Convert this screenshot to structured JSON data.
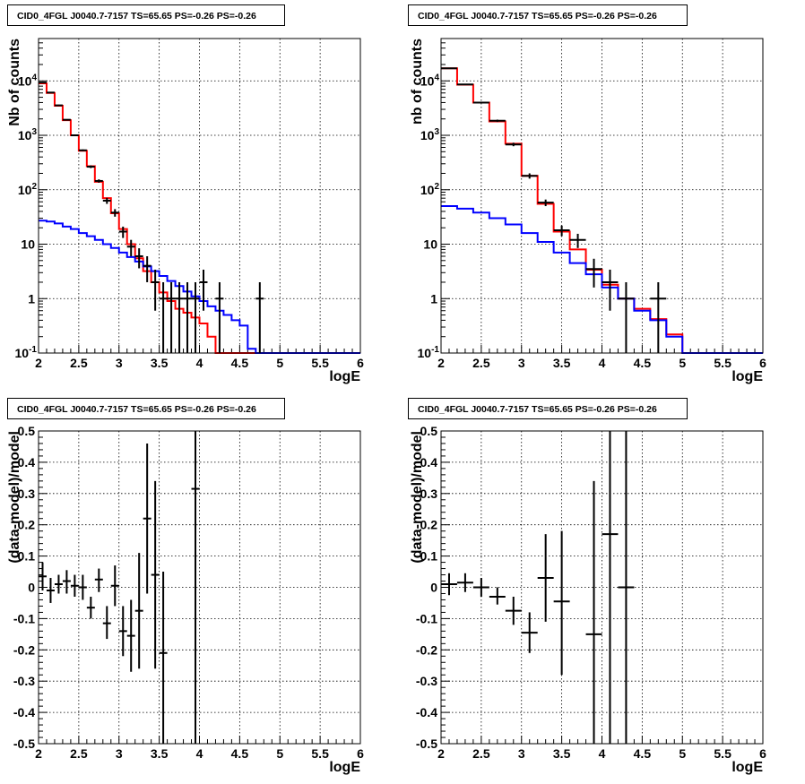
{
  "panel_titles": [
    "CID0_4FGL J0040.7-7157 TS=65.65 PS=-0.26 PS=-0.26",
    "CID0_4FGL J0040.7-7157 TS=65.65 PS=-0.26 PS=-0.26",
    "CID0_4FGL J0040.7-7157 TS=65.65 PS=-0.26 PS=-0.26",
    "CID0_4FGL J0040.7-7157 TS=65.65 PS=-0.26 PS=-0.26"
  ],
  "colors": {
    "red_model": "#ff0000",
    "blue_model": "#0000ff",
    "data": "#000000"
  },
  "chart_data": [
    {
      "type": "line",
      "xlabel": "logE",
      "ylabel": "Nb of counts",
      "xlim": [
        2,
        6
      ],
      "ylim": [
        0.1,
        60000
      ],
      "log_y": true,
      "grid": true,
      "x_ticks": [
        "2",
        "2.5",
        "3",
        "3.5",
        "4",
        "4.5",
        "5",
        "5.5",
        "6"
      ],
      "y_ticks": [
        "10^-1",
        "1",
        "10",
        "10^2",
        "10^3",
        "10^4"
      ],
      "bin_edges": [
        2.0,
        2.1,
        2.2,
        2.3,
        2.4,
        2.5,
        2.6,
        2.7,
        2.8,
        2.9,
        3.0,
        3.1,
        3.2,
        3.3,
        3.4,
        3.5,
        3.6,
        3.7,
        3.8,
        3.9,
        4.0,
        4.1,
        4.2,
        4.3,
        4.4,
        4.5,
        4.6,
        4.7,
        4.8,
        4.9,
        5.0,
        5.1,
        5.2,
        5.3,
        5.4,
        5.5,
        5.6,
        5.7,
        5.8,
        5.9,
        6.0
      ],
      "series": [
        {
          "color": "#ff0000",
          "values": [
            9000,
            6000,
            3500,
            1900,
            1000,
            520,
            270,
            140,
            70,
            37,
            19,
            10,
            5.5,
            3.2,
            2.0,
            1.3,
            0.9,
            0.65,
            0.55,
            0.45,
            0.35,
            0.2,
            0.1,
            0.1,
            0.1,
            0.1,
            0.1,
            0.1,
            0.1,
            0.1,
            0.1,
            0.1,
            0.1,
            0.1,
            0.1,
            0.1,
            0.1,
            0.1,
            0.1,
            0.1
          ]
        },
        {
          "color": "#0000ff",
          "values": [
            27,
            26,
            24,
            21,
            19,
            16,
            14,
            12,
            10,
            8.5,
            7,
            5.8,
            4.8,
            3.9,
            3.2,
            2.6,
            2.1,
            1.7,
            1.35,
            1.1,
            0.9,
            0.72,
            0.6,
            0.5,
            0.4,
            0.32,
            0.12,
            0.1,
            0.1,
            0.1,
            0.1,
            0.1,
            0.1,
            0.1,
            0.1,
            0.1,
            0.1,
            0.1,
            0.1,
            0.1
          ]
        },
        {
          "color": "#000000",
          "points": [
            {
              "x": 2.05,
              "y": 9300,
              "lo": 9100,
              "hi": 9500
            },
            {
              "x": 2.15,
              "y": 6100,
              "lo": 5950,
              "hi": 6250
            },
            {
              "x": 2.25,
              "y": 3550,
              "lo": 3450,
              "hi": 3650
            },
            {
              "x": 2.35,
              "y": 1930,
              "lo": 1880,
              "hi": 1980
            },
            {
              "x": 2.45,
              "y": 1000,
              "lo": 970,
              "hi": 1030
            },
            {
              "x": 2.55,
              "y": 530,
              "lo": 510,
              "hi": 550
            },
            {
              "x": 2.65,
              "y": 265,
              "lo": 250,
              "hi": 280
            },
            {
              "x": 2.75,
              "y": 145,
              "lo": 135,
              "hi": 155
            },
            {
              "x": 2.85,
              "y": 63,
              "lo": 55,
              "hi": 71
            },
            {
              "x": 2.95,
              "y": 38,
              "lo": 32,
              "hi": 44
            },
            {
              "x": 3.05,
              "y": 17,
              "lo": 13,
              "hi": 21
            },
            {
              "x": 3.15,
              "y": 9,
              "lo": 6,
              "hi": 12
            },
            {
              "x": 3.25,
              "y": 6,
              "lo": 3.6,
              "hi": 8.4
            },
            {
              "x": 3.35,
              "y": 4,
              "lo": 2,
              "hi": 6
            },
            {
              "x": 3.45,
              "y": 2,
              "lo": 0.6,
              "hi": 3.4
            },
            {
              "x": 3.55,
              "y": 1,
              "lo": 0.1,
              "hi": 2
            },
            {
              "x": 3.65,
              "y": 1,
              "lo": 0.1,
              "hi": 2
            },
            {
              "x": 3.75,
              "y": 1,
              "lo": 0.1,
              "hi": 2
            },
            {
              "x": 3.85,
              "y": 1,
              "lo": 0.1,
              "hi": 2
            },
            {
              "x": 3.95,
              "y": 1,
              "lo": 0.1,
              "hi": 2
            },
            {
              "x": 4.05,
              "y": 2,
              "lo": 0.6,
              "hi": 3.4
            },
            {
              "x": 4.25,
              "y": 1,
              "lo": 0.1,
              "hi": 2
            },
            {
              "x": 4.75,
              "y": 1,
              "lo": 0.1,
              "hi": 2
            }
          ]
        }
      ]
    },
    {
      "type": "line",
      "xlabel": "logE",
      "ylabel": "nb of counts",
      "xlim": [
        2,
        6
      ],
      "ylim": [
        0.1,
        60000
      ],
      "log_y": true,
      "grid": true,
      "x_ticks": [
        "2",
        "2.5",
        "3",
        "3.5",
        "4",
        "4.5",
        "5",
        "5.5",
        "6"
      ],
      "y_ticks": [
        "10^-1",
        "1",
        "10",
        "10^2",
        "10^3",
        "10^4"
      ],
      "bin_edges": [
        2.0,
        2.2,
        2.4,
        2.6,
        2.8,
        3.0,
        3.2,
        3.4,
        3.6,
        3.8,
        4.0,
        4.2,
        4.4,
        4.6,
        4.8,
        5.0,
        5.2,
        5.4,
        5.6,
        5.8,
        6.0
      ],
      "series": [
        {
          "color": "#ff0000",
          "values": [
            17000,
            8500,
            4000,
            1800,
            700,
            180,
            55,
            17,
            8,
            3.4,
            1.8,
            1.0,
            0.65,
            0.42,
            0.22,
            0.1,
            0.1,
            0.1,
            0.1,
            0.1
          ]
        },
        {
          "color": "#0000ff",
          "values": [
            50,
            45,
            38,
            30,
            23,
            16,
            11,
            7,
            4.5,
            2.8,
            1.6,
            1.0,
            0.6,
            0.4,
            0.2,
            0.1,
            0.1,
            0.1,
            0.1,
            0.1
          ]
        },
        {
          "color": "#000000",
          "points": [
            {
              "x": 2.1,
              "y": 17000,
              "lo": 16700,
              "hi": 17300
            },
            {
              "x": 2.3,
              "y": 8600,
              "lo": 8400,
              "hi": 8800
            },
            {
              "x": 2.5,
              "y": 4000,
              "lo": 3870,
              "hi": 4130
            },
            {
              "x": 2.7,
              "y": 1850,
              "lo": 1760,
              "hi": 1940
            },
            {
              "x": 2.9,
              "y": 680,
              "lo": 630,
              "hi": 730
            },
            {
              "x": 3.1,
              "y": 180,
              "lo": 160,
              "hi": 200
            },
            {
              "x": 3.3,
              "y": 58,
              "lo": 50,
              "hi": 66
            },
            {
              "x": 3.5,
              "y": 18,
              "lo": 14,
              "hi": 22
            },
            {
              "x": 3.7,
              "y": 12,
              "lo": 8.5,
              "hi": 15.5
            },
            {
              "x": 3.9,
              "y": 3.5,
              "lo": 1.6,
              "hi": 5.4
            },
            {
              "x": 4.1,
              "y": 2,
              "lo": 0.6,
              "hi": 3.4
            },
            {
              "x": 4.3,
              "y": 1,
              "lo": 0.1,
              "hi": 2
            },
            {
              "x": 4.7,
              "y": 1,
              "lo": 0.1,
              "hi": 2
            }
          ]
        }
      ]
    },
    {
      "type": "scatter",
      "xlabel": "logE",
      "ylabel": "(data-model)/model",
      "xlim": [
        2,
        6
      ],
      "ylim": [
        -0.5,
        0.5
      ],
      "grid": true,
      "x_ticks": [
        "2",
        "2.5",
        "3",
        "3.5",
        "4",
        "4.5",
        "5",
        "5.5",
        "6"
      ],
      "y_ticks": [
        "-0.5",
        "-0.4",
        "-0.3",
        "-0.2",
        "-0.1",
        "0",
        "0.1",
        "0.2",
        "0.3",
        "0.4",
        "0.5"
      ],
      "series": [
        {
          "color": "#000000",
          "points": [
            {
              "x": 2.05,
              "y": 0.035,
              "lo": -0.01,
              "hi": 0.08
            },
            {
              "x": 2.15,
              "y": -0.01,
              "lo": -0.05,
              "hi": 0.03
            },
            {
              "x": 2.25,
              "y": 0.01,
              "lo": -0.02,
              "hi": 0.04
            },
            {
              "x": 2.35,
              "y": 0.02,
              "lo": -0.02,
              "hi": 0.055
            },
            {
              "x": 2.45,
              "y": 0.005,
              "lo": -0.03,
              "hi": 0.04
            },
            {
              "x": 2.55,
              "y": 0.0,
              "lo": -0.04,
              "hi": 0.04
            },
            {
              "x": 2.65,
              "y": -0.065,
              "lo": -0.1,
              "hi": -0.03
            },
            {
              "x": 2.75,
              "y": 0.025,
              "lo": -0.015,
              "hi": 0.06
            },
            {
              "x": 2.85,
              "y": -0.115,
              "lo": -0.165,
              "hi": -0.06
            },
            {
              "x": 2.95,
              "y": 0.005,
              "lo": -0.06,
              "hi": 0.07
            },
            {
              "x": 3.05,
              "y": -0.14,
              "lo": -0.22,
              "hi": -0.06
            },
            {
              "x": 3.15,
              "y": -0.155,
              "lo": -0.27,
              "hi": -0.04
            },
            {
              "x": 3.25,
              "y": -0.075,
              "lo": -0.26,
              "hi": 0.11
            },
            {
              "x": 3.35,
              "y": 0.22,
              "lo": -0.02,
              "hi": 0.46
            },
            {
              "x": 3.45,
              "y": 0.04,
              "lo": -0.26,
              "hi": 0.34
            },
            {
              "x": 3.55,
              "y": -0.21,
              "lo": -0.5,
              "hi": 0.05
            },
            {
              "x": 3.95,
              "y": 0.315,
              "lo": -0.5,
              "hi": 0.5
            }
          ]
        }
      ]
    },
    {
      "type": "scatter",
      "xlabel": "logE",
      "ylabel": "(data-model)/model",
      "xlim": [
        2,
        6
      ],
      "ylim": [
        -0.5,
        0.5
      ],
      "grid": true,
      "x_ticks": [
        "2",
        "2.5",
        "3",
        "3.5",
        "4",
        "4.5",
        "5",
        "5.5",
        "6"
      ],
      "y_ticks": [
        "-0.5",
        "-0.4",
        "-0.3",
        "-0.2",
        "-0.1",
        "0",
        "0.1",
        "0.2",
        "0.3",
        "0.4",
        "0.5"
      ],
      "series": [
        {
          "color": "#000000",
          "points": [
            {
              "x": 2.1,
              "y": 0.01,
              "lo": -0.025,
              "hi": 0.045
            },
            {
              "x": 2.3,
              "y": 0.015,
              "lo": -0.015,
              "hi": 0.045
            },
            {
              "x": 2.5,
              "y": 0.0,
              "lo": -0.03,
              "hi": 0.03
            },
            {
              "x": 2.7,
              "y": -0.03,
              "lo": -0.055,
              "hi": 0.0
            },
            {
              "x": 2.9,
              "y": -0.075,
              "lo": -0.12,
              "hi": -0.03
            },
            {
              "x": 3.1,
              "y": -0.145,
              "lo": -0.21,
              "hi": -0.08
            },
            {
              "x": 3.3,
              "y": 0.03,
              "lo": -0.11,
              "hi": 0.17
            },
            {
              "x": 3.5,
              "y": -0.045,
              "lo": -0.28,
              "hi": 0.18
            },
            {
              "x": 3.9,
              "y": -0.15,
              "lo": -0.5,
              "hi": 0.34
            },
            {
              "x": 4.1,
              "y": 0.17,
              "lo": -0.5,
              "hi": 0.5
            },
            {
              "x": 4.3,
              "y": 0.0,
              "lo": -0.5,
              "hi": 0.5
            }
          ]
        }
      ]
    }
  ]
}
